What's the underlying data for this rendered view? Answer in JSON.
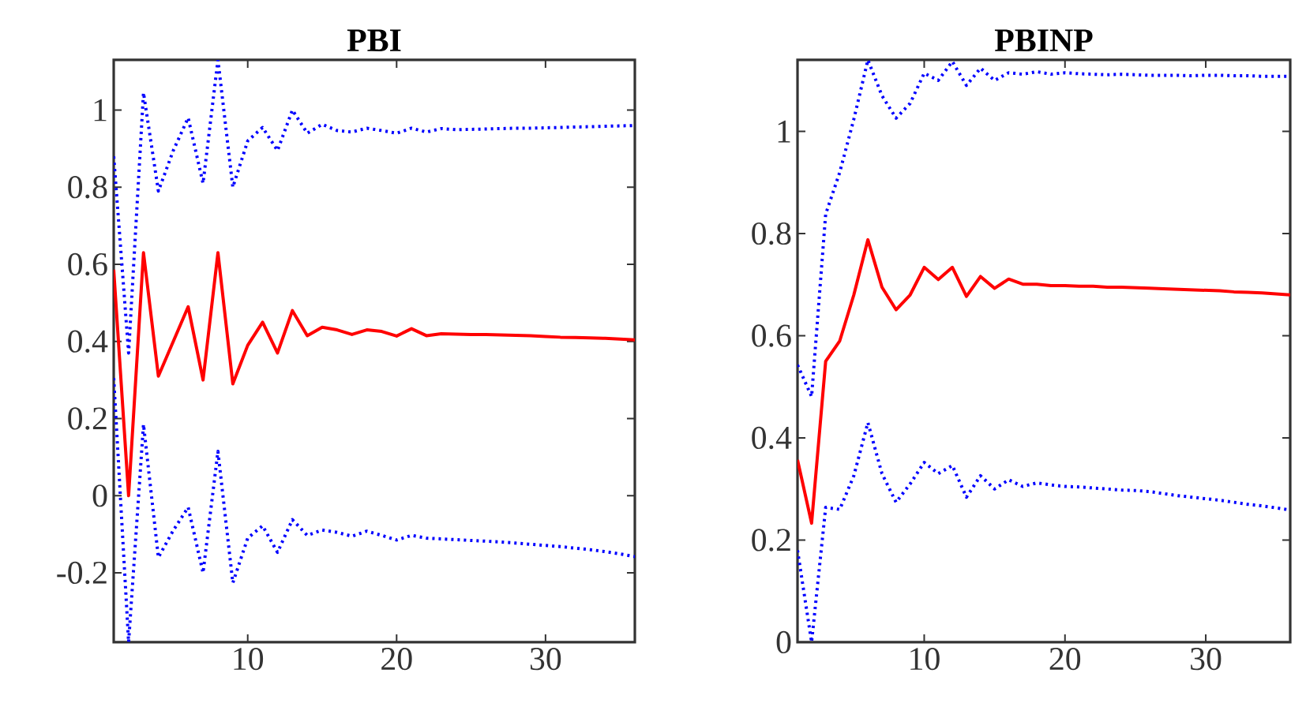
{
  "chart_data": [
    {
      "type": "line",
      "title": "PBI",
      "x": [
        1,
        2,
        3,
        4,
        5,
        6,
        7,
        8,
        9,
        10,
        11,
        12,
        13,
        14,
        15,
        16,
        17,
        18,
        19,
        20,
        21,
        22,
        23,
        24,
        25,
        26,
        27,
        28,
        29,
        30,
        31,
        32,
        33,
        34,
        35,
        36
      ],
      "xlim": [
        1,
        36
      ],
      "xticks": [
        10,
        20,
        30
      ],
      "ylim": [
        -0.38,
        1.13
      ],
      "yticks": [
        -0.2,
        0,
        0.2,
        0.4,
        0.6,
        0.8,
        1
      ],
      "series": [
        {
          "color": "#0000ff",
          "line_style": "dotted",
          "values": [
            0.88,
            0.37,
            1.045,
            0.79,
            0.895,
            0.98,
            0.81,
            1.13,
            0.8,
            0.92,
            0.955,
            0.895,
            1.0,
            0.94,
            0.963,
            0.947,
            0.943,
            0.953,
            0.947,
            0.94,
            0.953,
            0.943,
            0.952,
            0.949,
            0.95,
            0.951,
            0.952,
            0.953,
            0.953,
            0.954,
            0.955,
            0.956,
            0.957,
            0.958,
            0.959,
            0.96
          ]
        },
        {
          "color": "#0000ff",
          "line_style": "dotted",
          "values": [
            0.305,
            -0.38,
            0.185,
            -0.16,
            -0.09,
            -0.03,
            -0.2,
            0.115,
            -0.226,
            -0.11,
            -0.078,
            -0.147,
            -0.062,
            -0.103,
            -0.089,
            -0.095,
            -0.105,
            -0.092,
            -0.103,
            -0.115,
            -0.103,
            -0.11,
            -0.112,
            -0.114,
            -0.116,
            -0.118,
            -0.12,
            -0.123,
            -0.126,
            -0.129,
            -0.132,
            -0.136,
            -0.14,
            -0.145,
            -0.151,
            -0.158
          ]
        },
        {
          "color": "#ff0000",
          "line_style": "solid",
          "values": [
            0.586,
            0.0,
            0.63,
            0.31,
            0.4,
            0.49,
            0.3,
            0.63,
            0.29,
            0.39,
            0.45,
            0.37,
            0.48,
            0.415,
            0.437,
            0.43,
            0.418,
            0.43,
            0.426,
            0.414,
            0.433,
            0.415,
            0.42,
            0.419,
            0.418,
            0.418,
            0.417,
            0.416,
            0.415,
            0.413,
            0.411,
            0.41,
            0.409,
            0.408,
            0.406,
            0.404
          ]
        }
      ]
    },
    {
      "type": "line",
      "title": "PBINP",
      "x": [
        1,
        2,
        3,
        4,
        5,
        6,
        7,
        8,
        9,
        10,
        11,
        12,
        13,
        14,
        15,
        16,
        17,
        18,
        19,
        20,
        21,
        22,
        23,
        24,
        25,
        26,
        27,
        28,
        29,
        30,
        31,
        32,
        33,
        34,
        35,
        36
      ],
      "xlim": [
        1,
        36
      ],
      "xticks": [
        10,
        20,
        30
      ],
      "ylim": [
        0,
        1.14
      ],
      "yticks": [
        0,
        0.2,
        0.4,
        0.6,
        0.8,
        1
      ],
      "series": [
        {
          "color": "#0000ff",
          "line_style": "dotted",
          "values": [
            0.543,
            0.481,
            0.838,
            0.92,
            1.024,
            1.14,
            1.07,
            1.026,
            1.055,
            1.114,
            1.1,
            1.137,
            1.09,
            1.124,
            1.1,
            1.115,
            1.112,
            1.117,
            1.112,
            1.115,
            1.113,
            1.112,
            1.111,
            1.112,
            1.111,
            1.11,
            1.11,
            1.11,
            1.109,
            1.11,
            1.11,
            1.109,
            1.109,
            1.108,
            1.108,
            1.108
          ]
        },
        {
          "color": "#0000ff",
          "line_style": "dotted",
          "values": [
            0.18,
            0,
            0.264,
            0.26,
            0.326,
            0.43,
            0.33,
            0.274,
            0.31,
            0.352,
            0.33,
            0.346,
            0.284,
            0.326,
            0.3,
            0.318,
            0.305,
            0.312,
            0.308,
            0.305,
            0.304,
            0.302,
            0.3,
            0.298,
            0.297,
            0.295,
            0.291,
            0.287,
            0.284,
            0.281,
            0.278,
            0.274,
            0.27,
            0.267,
            0.263,
            0.259
          ]
        },
        {
          "color": "#ff0000",
          "line_style": "solid",
          "values": [
            0.357,
            0.233,
            0.55,
            0.59,
            0.68,
            0.788,
            0.695,
            0.651,
            0.68,
            0.734,
            0.71,
            0.734,
            0.677,
            0.716,
            0.693,
            0.711,
            0.701,
            0.701,
            0.698,
            0.698,
            0.697,
            0.697,
            0.695,
            0.695,
            0.694,
            0.693,
            0.692,
            0.691,
            0.69,
            0.689,
            0.688,
            0.686,
            0.685,
            0.684,
            0.682,
            0.68
          ]
        }
      ]
    }
  ]
}
